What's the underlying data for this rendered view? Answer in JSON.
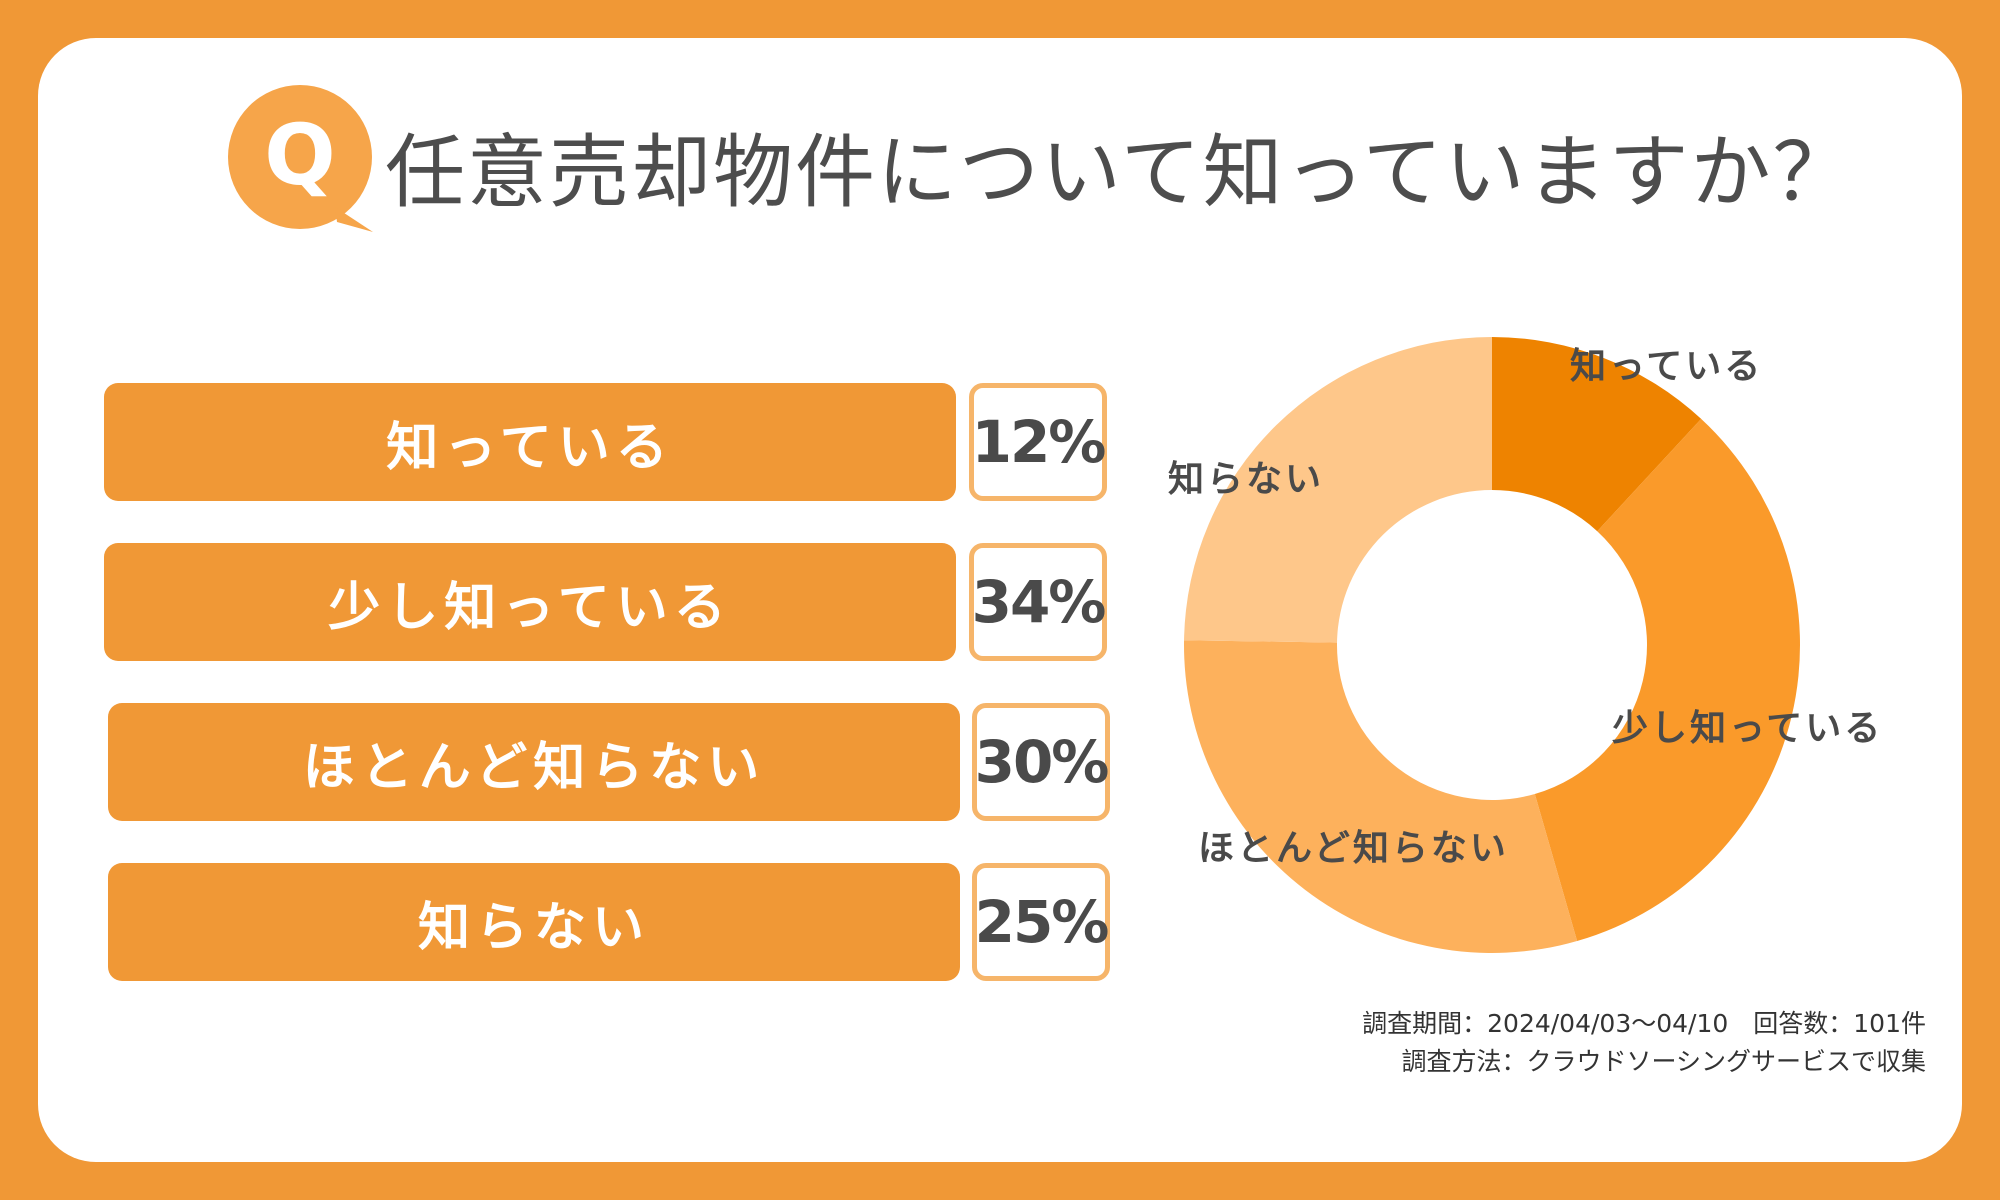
{
  "title": "任意売却物件について知っていますか？",
  "q_badge": "Q",
  "colors": {
    "background": "#f09836",
    "bar": "#f09836",
    "pct_border": "#f6b56a",
    "text_dark": "#4a4a4a"
  },
  "chart_data": {
    "type": "pie",
    "donut": true,
    "categories": [
      "知っている",
      "少し知っている",
      "ほとんど知らない",
      "知らない"
    ],
    "values": [
      12,
      34,
      30,
      25
    ],
    "value_labels": [
      "12%",
      "34%",
      "30%",
      "25%"
    ],
    "colors": [
      "#ee8300",
      "#fa9a2a",
      "#fdb15c",
      "#fec78a"
    ],
    "start": "top",
    "direction": "clockwise"
  },
  "note": {
    "line1": "調査期間：2024/04/03〜04/10　回答数：101件",
    "line2": "調査方法：クラウドソーシングサービスで収集"
  }
}
